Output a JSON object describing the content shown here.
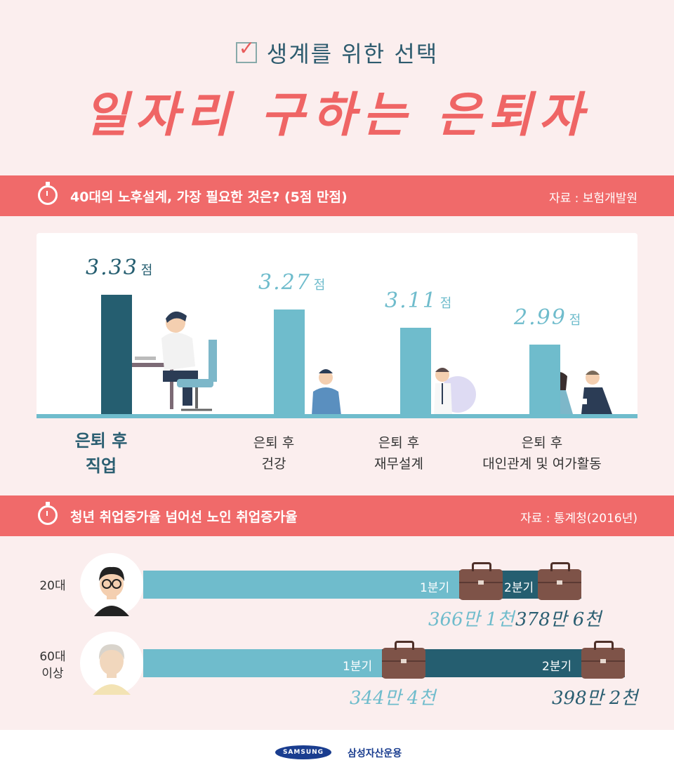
{
  "header": {
    "subtitle": "생계를 위한 선택",
    "title": "일자리 구하는 은퇴자"
  },
  "section1": {
    "title": "40대의 노후설계, 가장 필요한 것은? (5점 만점)",
    "source": "자료 : 보험개발원"
  },
  "chart_data": {
    "type": "bar",
    "categories": [
      "은퇴 후 직업",
      "은퇴 후 건강",
      "은퇴 후 재무설계",
      "은퇴 후 대인관계 및 여가활동"
    ],
    "values": [
      3.33,
      3.27,
      3.11,
      2.99
    ],
    "value_labels": [
      "3.33",
      "3.27",
      "3.11",
      "2.99"
    ],
    "unit": "점",
    "category_lines": [
      [
        "은퇴 후",
        "직업"
      ],
      [
        "은퇴 후",
        "건강"
      ],
      [
        "은퇴 후",
        "재무설계"
      ],
      [
        "은퇴 후",
        "대인관계 및 여가활동"
      ]
    ],
    "highlight_index": 0,
    "colors": {
      "highlight": "#255e70",
      "normal": "#6fbccc"
    }
  },
  "section2": {
    "title": "청년 취업증가율 넘어선 노인 취업증가율",
    "source": "자료 : 통계청(2016년)",
    "rows": [
      {
        "label": "20대",
        "q1_label": "1분기",
        "q2_label": "2분기",
        "q1_value": "366만 1천",
        "q2_value": "378만 6천",
        "q1": 3661,
        "q2": 3786
      },
      {
        "label": "60대\n이상",
        "q1_label": "1분기",
        "q2_label": "2분기",
        "q1_value": "344만 4천",
        "q2_value": "398만 2천",
        "q1": 3444,
        "q2": 3982
      }
    ]
  },
  "footer": {
    "logo": "SAMSUNG",
    "company": "삼성자산운용"
  },
  "colors": {
    "background": "#fbeeee",
    "banner": "#f06a6a",
    "teal": "#6fbccc",
    "dark_teal": "#255e70",
    "title_red": "#ef6565"
  }
}
